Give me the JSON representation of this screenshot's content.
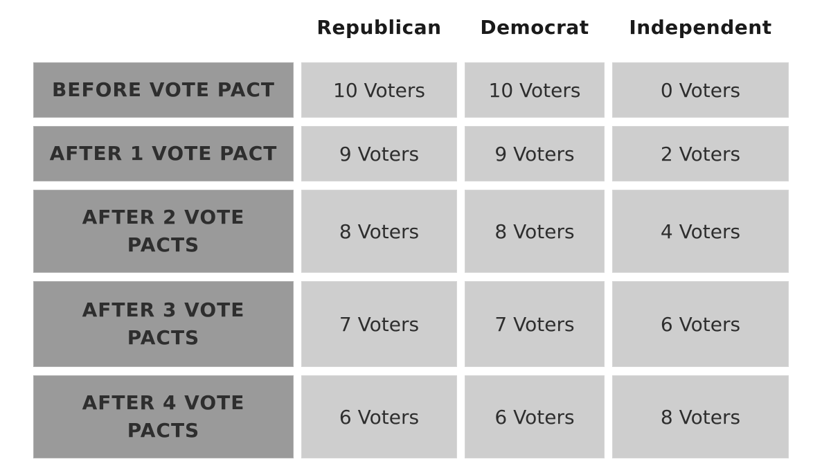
{
  "table": {
    "columns": [
      "Republican",
      "Democrat",
      "Independent"
    ],
    "rows": [
      {
        "label": "BEFORE VOTE PACT",
        "values": [
          "10 Voters",
          "10 Voters",
          "0 Voters"
        ]
      },
      {
        "label": "AFTER 1 VOTE PACT",
        "values": [
          "9 Voters",
          "9 Voters",
          "2 Voters"
        ]
      },
      {
        "label": "AFTER 2 VOTE PACTS",
        "values": [
          "8 Voters",
          "8 Voters",
          "4 Voters"
        ]
      },
      {
        "label": "AFTER 3 VOTE PACTS",
        "values": [
          "7 Voters",
          "7 Voters",
          "6 Voters"
        ]
      },
      {
        "label": "AFTER 4 VOTE PACTS",
        "values": [
          "6 Voters",
          "6 Voters",
          "8 Voters"
        ]
      }
    ],
    "colors": {
      "row_label_bg": "#9a9a9a",
      "data_cell_bg": "#cecece",
      "header_text": "#1a1a1a",
      "label_text": "#2e2e2e",
      "cell_text": "#2e2e2e",
      "page_bg": "#ffffff"
    }
  },
  "chart_data": {
    "type": "table",
    "title": "",
    "unit": "Voters",
    "categories": [
      "BEFORE VOTE PACT",
      "AFTER 1 VOTE PACT",
      "AFTER 2 VOTE PACTS",
      "AFTER 3 VOTE PACTS",
      "AFTER 4 VOTE PACTS"
    ],
    "series": [
      {
        "name": "Republican",
        "values": [
          10,
          9,
          8,
          7,
          6
        ]
      },
      {
        "name": "Democrat",
        "values": [
          10,
          9,
          8,
          7,
          6
        ]
      },
      {
        "name": "Independent",
        "values": [
          0,
          2,
          4,
          6,
          8
        ]
      }
    ]
  }
}
